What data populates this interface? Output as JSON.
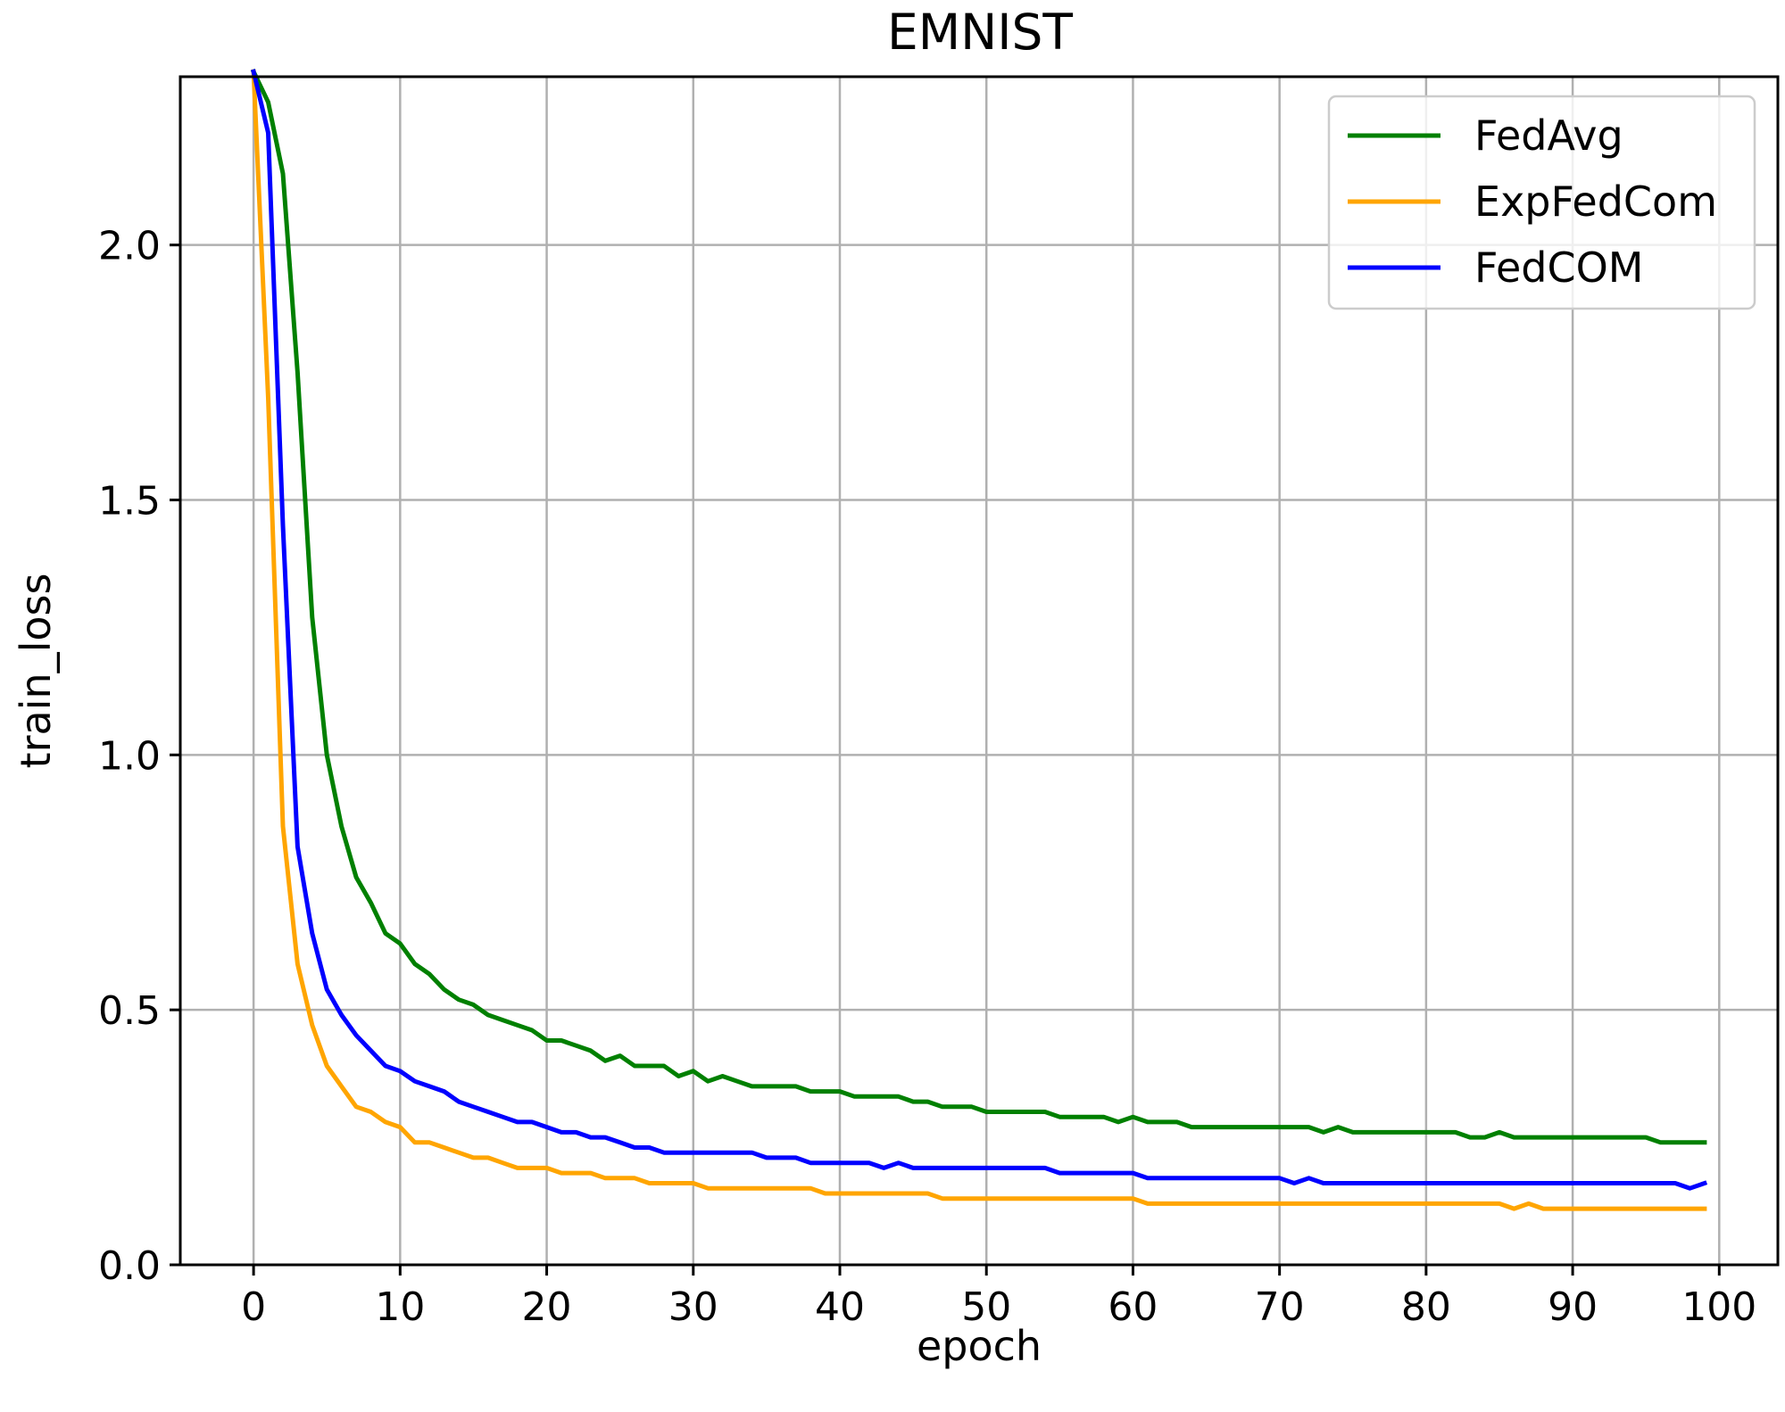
{
  "chart_data": {
    "type": "line",
    "title": "EMNIST",
    "xlabel": "epoch",
    "ylabel": "train_loss",
    "xlim": [
      -5,
      104
    ],
    "ylim": [
      0.0,
      2.33
    ],
    "xticks": [
      0,
      10,
      20,
      30,
      40,
      50,
      60,
      70,
      80,
      90,
      100
    ],
    "yticks": [
      0.0,
      0.5,
      1.0,
      1.5,
      2.0
    ],
    "xtick_labels": [
      "0",
      "10",
      "20",
      "30",
      "40",
      "50",
      "60",
      "70",
      "80",
      "90",
      "100"
    ],
    "ytick_labels": [
      "0.0",
      "0.5",
      "1.0",
      "1.5",
      "2.0"
    ],
    "grid": true,
    "legend_position": "top-right",
    "x": [
      0,
      1,
      2,
      3,
      4,
      5,
      6,
      7,
      8,
      9,
      10,
      11,
      12,
      13,
      14,
      15,
      16,
      17,
      18,
      19,
      20,
      21,
      22,
      23,
      24,
      25,
      26,
      27,
      28,
      29,
      30,
      31,
      32,
      33,
      34,
      35,
      36,
      37,
      38,
      39,
      40,
      41,
      42,
      43,
      44,
      45,
      46,
      47,
      48,
      49,
      50,
      51,
      52,
      53,
      54,
      55,
      56,
      57,
      58,
      59,
      60,
      61,
      62,
      63,
      64,
      65,
      66,
      67,
      68,
      69,
      70,
      71,
      72,
      73,
      74,
      75,
      76,
      77,
      78,
      79,
      80,
      81,
      82,
      83,
      84,
      85,
      86,
      87,
      88,
      89,
      90,
      91,
      92,
      93,
      94,
      95,
      96,
      97,
      98,
      99
    ],
    "series": [
      {
        "name": "FedAvg",
        "color": "#008000",
        "values": [
          2.34,
          2.28,
          2.14,
          1.75,
          1.27,
          1.0,
          0.86,
          0.76,
          0.71,
          0.65,
          0.63,
          0.59,
          0.57,
          0.54,
          0.52,
          0.51,
          0.49,
          0.48,
          0.47,
          0.46,
          0.44,
          0.44,
          0.43,
          0.42,
          0.4,
          0.41,
          0.39,
          0.39,
          0.39,
          0.37,
          0.38,
          0.36,
          0.37,
          0.36,
          0.35,
          0.35,
          0.35,
          0.35,
          0.34,
          0.34,
          0.34,
          0.33,
          0.33,
          0.33,
          0.33,
          0.32,
          0.32,
          0.31,
          0.31,
          0.31,
          0.3,
          0.3,
          0.3,
          0.3,
          0.3,
          0.29,
          0.29,
          0.29,
          0.29,
          0.28,
          0.29,
          0.28,
          0.28,
          0.28,
          0.27,
          0.27,
          0.27,
          0.27,
          0.27,
          0.27,
          0.27,
          0.27,
          0.27,
          0.26,
          0.27,
          0.26,
          0.26,
          0.26,
          0.26,
          0.26,
          0.26,
          0.26,
          0.26,
          0.25,
          0.25,
          0.26,
          0.25,
          0.25,
          0.25,
          0.25,
          0.25,
          0.25,
          0.25,
          0.25,
          0.25,
          0.25,
          0.24,
          0.24,
          0.24,
          0.24
        ]
      },
      {
        "name": "ExpFedCom",
        "color": "#FFA500",
        "values": [
          2.34,
          1.7,
          0.86,
          0.59,
          0.47,
          0.39,
          0.35,
          0.31,
          0.3,
          0.28,
          0.27,
          0.24,
          0.24,
          0.23,
          0.22,
          0.21,
          0.21,
          0.2,
          0.19,
          0.19,
          0.19,
          0.18,
          0.18,
          0.18,
          0.17,
          0.17,
          0.17,
          0.16,
          0.16,
          0.16,
          0.16,
          0.15,
          0.15,
          0.15,
          0.15,
          0.15,
          0.15,
          0.15,
          0.15,
          0.14,
          0.14,
          0.14,
          0.14,
          0.14,
          0.14,
          0.14,
          0.14,
          0.13,
          0.13,
          0.13,
          0.13,
          0.13,
          0.13,
          0.13,
          0.13,
          0.13,
          0.13,
          0.13,
          0.13,
          0.13,
          0.13,
          0.12,
          0.12,
          0.12,
          0.12,
          0.12,
          0.12,
          0.12,
          0.12,
          0.12,
          0.12,
          0.12,
          0.12,
          0.12,
          0.12,
          0.12,
          0.12,
          0.12,
          0.12,
          0.12,
          0.12,
          0.12,
          0.12,
          0.12,
          0.12,
          0.12,
          0.11,
          0.12,
          0.11,
          0.11,
          0.11,
          0.11,
          0.11,
          0.11,
          0.11,
          0.11,
          0.11,
          0.11,
          0.11,
          0.11
        ]
      },
      {
        "name": "FedCOM",
        "color": "#0000FF",
        "values": [
          2.34,
          2.22,
          1.45,
          0.82,
          0.65,
          0.54,
          0.49,
          0.45,
          0.42,
          0.39,
          0.38,
          0.36,
          0.35,
          0.34,
          0.32,
          0.31,
          0.3,
          0.29,
          0.28,
          0.28,
          0.27,
          0.26,
          0.26,
          0.25,
          0.25,
          0.24,
          0.23,
          0.23,
          0.22,
          0.22,
          0.22,
          0.22,
          0.22,
          0.22,
          0.22,
          0.21,
          0.21,
          0.21,
          0.2,
          0.2,
          0.2,
          0.2,
          0.2,
          0.19,
          0.2,
          0.19,
          0.19,
          0.19,
          0.19,
          0.19,
          0.19,
          0.19,
          0.19,
          0.19,
          0.19,
          0.18,
          0.18,
          0.18,
          0.18,
          0.18,
          0.18,
          0.17,
          0.17,
          0.17,
          0.17,
          0.17,
          0.17,
          0.17,
          0.17,
          0.17,
          0.17,
          0.16,
          0.17,
          0.16,
          0.16,
          0.16,
          0.16,
          0.16,
          0.16,
          0.16,
          0.16,
          0.16,
          0.16,
          0.16,
          0.16,
          0.16,
          0.16,
          0.16,
          0.16,
          0.16,
          0.16,
          0.16,
          0.16,
          0.16,
          0.16,
          0.16,
          0.16,
          0.16,
          0.15,
          0.16
        ]
      }
    ]
  }
}
